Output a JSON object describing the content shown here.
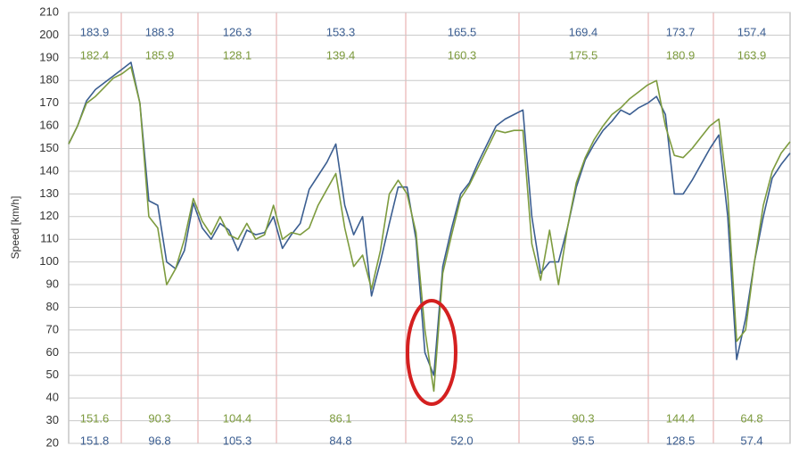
{
  "chart_data": {
    "type": "line",
    "ylabel": "Speed [km/h]",
    "ylim": [
      20,
      210
    ],
    "yticks": [
      20,
      30,
      40,
      50,
      60,
      70,
      80,
      90,
      100,
      110,
      120,
      130,
      140,
      150,
      160,
      170,
      180,
      190,
      200,
      210
    ],
    "grid": true,
    "categories": [
      null,
      null,
      null,
      null,
      null,
      null,
      null,
      null,
      null,
      null,
      null,
      null,
      null,
      null,
      null,
      null,
      null,
      null,
      null,
      null,
      null,
      null,
      null,
      null,
      null,
      null,
      null,
      null,
      null,
      null,
      null,
      null,
      null,
      null,
      null,
      null,
      null,
      null,
      null,
      null,
      null,
      null,
      null,
      null,
      null,
      null,
      null,
      null,
      null,
      null,
      null,
      null,
      null,
      null,
      null,
      null,
      null,
      null,
      null,
      null,
      null,
      null,
      null,
      null,
      null,
      null,
      null,
      null,
      null,
      null,
      null,
      null,
      null,
      null,
      null,
      null,
      null,
      null,
      null,
      null,
      null,
      null
    ],
    "series": [
      {
        "color": "#3b5e91",
        "values": [
          152,
          160,
          171,
          176,
          179,
          182,
          185,
          188,
          170,
          127,
          125,
          100,
          97,
          105,
          126,
          115,
          110,
          117,
          114,
          105,
          114,
          112,
          113,
          120,
          106,
          112,
          117,
          132,
          138,
          144,
          152,
          125,
          112,
          120,
          85,
          100,
          117,
          133,
          133,
          110,
          60,
          50,
          98,
          115,
          130,
          135,
          144,
          152,
          160,
          163,
          165,
          167,
          120,
          95,
          100,
          100,
          115,
          133,
          145,
          152,
          158,
          162,
          167,
          165,
          168,
          170,
          173,
          165,
          130,
          130,
          136,
          143,
          150,
          156,
          120,
          57,
          75,
          100,
          120,
          137,
          143,
          148
        ]
      },
      {
        "color": "#7d9b3e",
        "values": [
          152,
          160,
          170,
          173,
          177,
          181,
          183,
          186,
          170,
          120,
          115,
          90,
          97,
          110,
          128,
          118,
          112,
          120,
          112,
          110,
          117,
          110,
          112,
          125,
          110,
          113,
          112,
          115,
          125,
          132,
          139,
          115,
          98,
          103,
          88,
          105,
          130,
          136,
          130,
          113,
          70,
          43,
          95,
          112,
          128,
          134,
          142,
          150,
          158,
          157,
          158,
          158,
          108,
          92,
          114,
          90,
          115,
          135,
          146,
          154,
          160,
          165,
          168,
          172,
          175,
          178,
          180,
          160,
          147,
          146,
          150,
          155,
          160,
          163,
          130,
          65,
          70,
          100,
          125,
          140,
          148,
          153
        ]
      }
    ],
    "annotations": {
      "top_row_1": [
        "183.9",
        "188.3",
        "126.3",
        "153.3",
        "165.5",
        "169.4",
        "173.7",
        "157.4"
      ],
      "top_row_2": [
        "182.4",
        "185.9",
        "128.1",
        "139.4",
        "160.3",
        "175.5",
        "180.9",
        "163.9"
      ],
      "bottom_row_1": [
        "151.6",
        "90.3",
        "104.4",
        "86.1",
        "43.5",
        "90.3",
        "144.4",
        "64.8"
      ],
      "bottom_row_2": [
        "151.8",
        "96.8",
        "105.3",
        "84.8",
        "52.0",
        "95.5",
        "128.5",
        "57.4"
      ]
    }
  }
}
